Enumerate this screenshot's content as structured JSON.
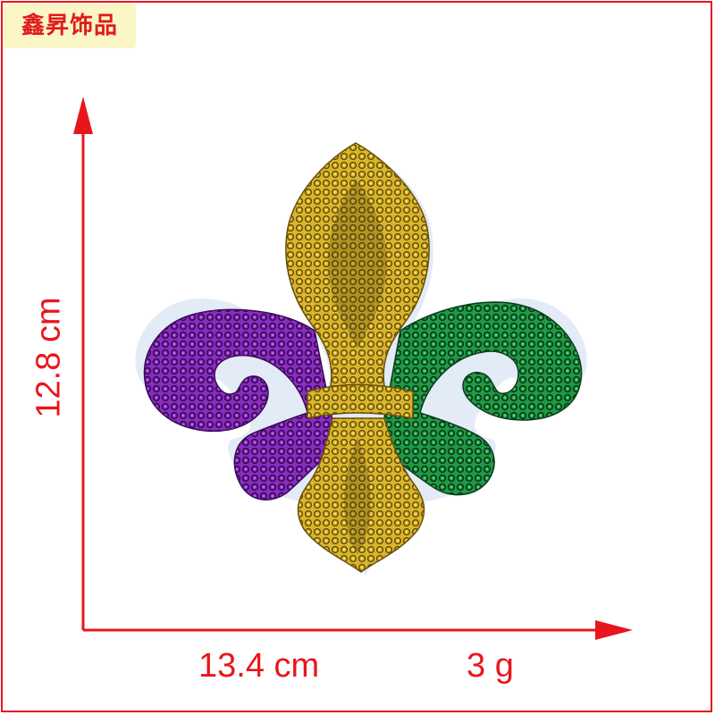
{
  "brand": {
    "text": "鑫昇饰品"
  },
  "dimensions": {
    "height": "12.8  cm",
    "width": "13.4 cm",
    "weight": "3 g"
  },
  "colors": {
    "accent": "#e8161c",
    "brand_bg": "#fbf6c6",
    "gold": "#c9a51c",
    "purple": "#7b1fa2",
    "green": "#1b8a3a"
  },
  "product": {
    "icon": "fleur-de-lis-sequin-patch"
  }
}
